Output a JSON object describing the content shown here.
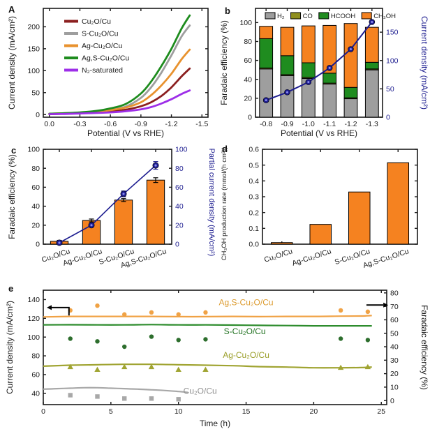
{
  "panels": {
    "a": {
      "letter": "A"
    },
    "b": {
      "letter": "b"
    },
    "c": {
      "letter": "c"
    },
    "d": {
      "letter": "d"
    },
    "e": {
      "letter": "e"
    }
  },
  "colors": {
    "axis": "#1a1a1a",
    "navy": "#1c1c8f",
    "navy_core": "#8a8aee",
    "orange_bar": "#f58220",
    "gray_bar": "#9e9e9e",
    "green_bar": "#1f8c1f",
    "olive_bar": "#8f8f1e"
  },
  "chart_data": [
    {
      "id": "a",
      "type": "line",
      "xlabel": "Potential (V vs RHE)",
      "ylabel": "Current density (mA/cm²)",
      "xlim": [
        0.06,
        -1.56
      ],
      "ylim": [
        -6,
        242
      ],
      "xticks": [
        0.0,
        -0.3,
        -0.6,
        -0.9,
        -1.2,
        -1.5
      ],
      "yticks": [
        0,
        50,
        100,
        150,
        200
      ],
      "x": [
        0,
        -0.15,
        -0.3,
        -0.45,
        -0.6,
        -0.75,
        -0.9,
        -1.0,
        -1.1,
        -1.2,
        -1.3,
        -1.38
      ],
      "series": [
        {
          "name": "Cu₂O/Cu",
          "color": "#8b1f1f",
          "y": [
            1,
            2,
            3,
            4.5,
            7,
            11,
            19,
            28,
            42,
            62,
            87,
            105
          ]
        },
        {
          "name": "S-Cu₂O/Cu",
          "color": "#9e9e9e",
          "y": [
            2,
            3,
            4.5,
            7,
            11,
            18,
            38,
            62,
            95,
            135,
            178,
            203
          ]
        },
        {
          "name": "Ag-Cu₂O/Cu",
          "color": "#e8922e",
          "y": [
            2,
            3,
            4,
            6,
            10,
            16,
            28,
            44,
            66,
            93,
            126,
            148
          ]
        },
        {
          "name": "Ag,S-Cu₂O/Cu",
          "color": "#1e8c1e",
          "y": [
            2,
            3,
            5,
            8,
            14,
            24,
            48,
            75,
            110,
            150,
            196,
            226
          ]
        },
        {
          "name": "N₂-saturated",
          "color": "#9d2ee8",
          "y": [
            1,
            1.5,
            2.5,
            3.5,
            5,
            7.5,
            12,
            17,
            25,
            35,
            47,
            55
          ]
        }
      ]
    },
    {
      "id": "b",
      "type": "stacked-bar-line",
      "xlabel": "Potential (V vs RHE)",
      "ylabel_left": "Faradaic efficiency (%)",
      "ylabel_right": "Current density (mA/cm²)",
      "categories": [
        "-0.8",
        "-0.9",
        "-1.0",
        "-1.1",
        "-1.2",
        "-1.3"
      ],
      "ylim_left": [
        0,
        115
      ],
      "yticks_left": [
        0,
        20,
        40,
        60,
        80,
        100
      ],
      "ylim_right": [
        0,
        192
      ],
      "yticks_right": [
        0,
        50,
        100,
        150
      ],
      "series": [
        {
          "name": "H₂",
          "color": "#9e9e9e",
          "values": [
            51,
            44,
            41,
            35,
            19.5,
            50
          ]
        },
        {
          "name": "CO",
          "color": "#8f8f1e",
          "values": [
            1,
            1,
            1,
            1,
            1,
            1
          ]
        },
        {
          "name": "HCOOH",
          "color": "#1f8c1f",
          "values": [
            31,
            20,
            15.5,
            10.5,
            11,
            7
          ]
        },
        {
          "name": "CH₃OH",
          "color": "#f58220",
          "values": [
            13,
            30,
            39,
            50.5,
            67.5,
            37
          ]
        }
      ],
      "line": {
        "name": "Current density",
        "color": "#1c1c8f",
        "values": [
          30,
          44,
          62,
          87,
          120,
          168
        ]
      }
    },
    {
      "id": "c",
      "type": "bar-line-dual",
      "ylabel_left": "Faradaic efficiency (%)",
      "ylabel_right": "Partial current density (mA/cm²)",
      "categories": [
        "Cu₂O/Cu",
        "Ag-Cu₂O/Cu",
        "S-Cu₂O/Cu",
        "Ag,S-Cu₂O/Cu"
      ],
      "ylim": [
        0,
        100
      ],
      "yticks": [
        0,
        20,
        40,
        60,
        80,
        100
      ],
      "bars": {
        "color": "#f58220",
        "values": [
          3,
          25,
          46.5,
          67.5
        ],
        "errors": [
          1,
          1.5,
          1.5,
          2.5
        ]
      },
      "line": {
        "color": "#1c1c8f",
        "values": [
          1.5,
          20,
          53,
          83
        ],
        "errors": [
          0.8,
          1.5,
          3,
          4
        ]
      }
    },
    {
      "id": "d",
      "type": "bar",
      "ylabel": "CH₃OH production rate (mmol/(h cm²))",
      "categories": [
        "Cu₂O/Cu",
        "Ag-Cu₂O/Cu",
        "S-Cu₂O/Cu",
        "Ag,S-Cu₂O/Cu"
      ],
      "ylim": [
        0,
        0.6
      ],
      "yticks": [
        0.0,
        0.1,
        0.2,
        0.3,
        0.4,
        0.5,
        0.6
      ],
      "bars": {
        "color": "#f58220",
        "values": [
          0.01,
          0.125,
          0.33,
          0.515
        ]
      }
    },
    {
      "id": "e",
      "type": "multi-line-scatter-dual",
      "xlabel": "Time (h)",
      "ylabel_left": "Current density (mA/cm²)",
      "ylabel_right": "Faradaic efficiency (%)",
      "xlim": [
        0,
        25.4
      ],
      "xticks": [
        0,
        5,
        10,
        15,
        20,
        25
      ],
      "ylim_left": [
        28,
        150
      ],
      "yticks_left": [
        40,
        60,
        80,
        100,
        120,
        140
      ],
      "ylim_right": [
        -3,
        82
      ],
      "yticks_right": [
        0,
        10,
        20,
        30,
        40,
        50,
        60,
        70,
        80
      ],
      "lines": [
        {
          "name": "Ag,S-Cu₂O/Cu",
          "color": "#f0a245",
          "x": [
            0,
            2,
            4,
            6,
            8,
            10,
            12,
            14,
            16,
            18,
            20,
            22,
            23.5,
            24.3
          ],
          "y": [
            121.5,
            122,
            122,
            122,
            122,
            121.8,
            121.8,
            122,
            121.8,
            122,
            122,
            122.3,
            122.5,
            123
          ]
        },
        {
          "name": "S-Cu₂O/Cu",
          "color": "#2d8c2d",
          "x": [
            0,
            2,
            4,
            6,
            8,
            10,
            12,
            14,
            16,
            18,
            20,
            22,
            23.5,
            24.3
          ],
          "y": [
            113,
            113.2,
            113,
            113,
            113.3,
            113,
            113,
            112.8,
            112.5,
            112.3,
            112,
            112,
            112,
            112
          ]
        },
        {
          "name": "Ag-Cu₂O/Cu",
          "color": "#a0a432",
          "x": [
            0,
            2,
            4,
            6,
            8,
            10,
            12,
            14,
            16,
            18,
            20,
            22,
            23.5,
            24.3
          ],
          "y": [
            69,
            70,
            70.5,
            71,
            71,
            70.5,
            70,
            69.5,
            68.5,
            68,
            67.3,
            67.3,
            67.5,
            68
          ]
        },
        {
          "name": "Cu₂O/Cu",
          "color": "#a8a8a8",
          "x": [
            0,
            1,
            2,
            3,
            4,
            5,
            6,
            7,
            8,
            9,
            10,
            10.7
          ],
          "y": [
            44.5,
            45,
            45.5,
            46,
            46,
            45.5,
            45,
            44.5,
            43.8,
            43,
            42,
            41
          ]
        }
      ],
      "scatter": [
        {
          "name": "Ag,S-Cu₂O/Cu FE",
          "color": "#f0a245",
          "marker": "circle",
          "t": [
            2,
            4,
            6,
            8,
            10,
            12,
            22,
            24
          ],
          "fe": [
            67,
            70.5,
            64,
            65.5,
            64,
            65.5,
            67,
            66
          ]
        },
        {
          "name": "S-Cu₂O/Cu FE",
          "color": "#2d6e2d",
          "marker": "circle",
          "t": [
            2,
            4,
            6,
            8,
            10,
            12,
            22,
            24
          ],
          "fe": [
            46,
            44,
            40,
            47.5,
            45,
            45.5,
            46,
            45
          ]
        },
        {
          "name": "Ag-Cu₂O/Cu FE",
          "color": "#a0a432",
          "marker": "triangle",
          "t": [
            2,
            4,
            6,
            8,
            10,
            12,
            22,
            24
          ],
          "fe": [
            25,
            23,
            25,
            25,
            23,
            23,
            24.5,
            25
          ]
        },
        {
          "name": "Cu₂O/Cu FE",
          "color": "#a8a8a8",
          "marker": "square",
          "t": [
            2,
            4,
            6,
            8,
            10
          ],
          "fe": [
            4,
            3,
            1.5,
            1.5,
            1
          ]
        }
      ],
      "inplot_labels": [
        {
          "text": "Ag,S-Cu₂O/Cu",
          "color": "#dd9d33",
          "x": 15.0,
          "y": 134
        },
        {
          "text": "S-Cu₂O/Cu",
          "color": "#1e701e",
          "x": 14.9,
          "y": 103
        },
        {
          "text": "Ag-Cu₂O/Cu",
          "color": "#9a9e28",
          "x": 15.0,
          "y": 78
        },
        {
          "text": "Cu₂O/Cu",
          "color": "#909090",
          "x": 11.6,
          "y": 39.5
        }
      ]
    }
  ]
}
